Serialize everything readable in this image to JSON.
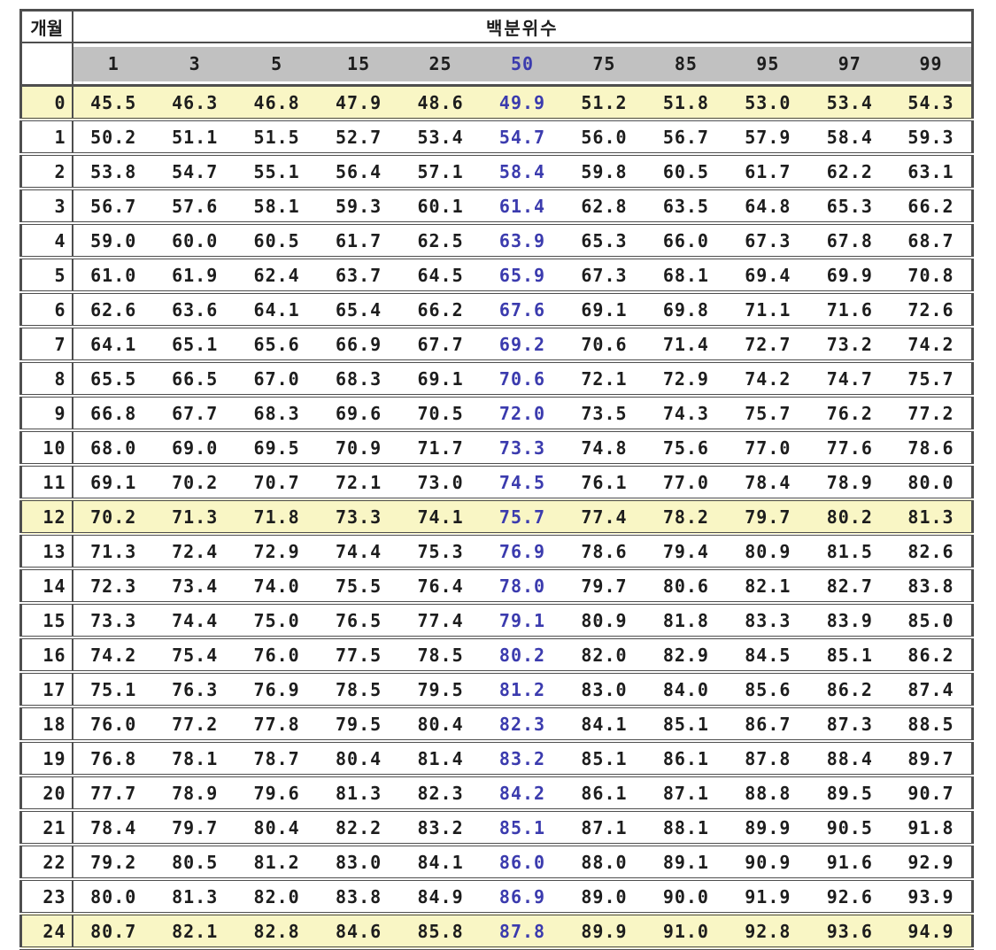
{
  "table": {
    "corner_header": "개월",
    "group_header": "백분위수",
    "percentile_headers": [
      "1",
      "3",
      "5",
      "15",
      "25",
      "50",
      "75",
      "85",
      "95",
      "97",
      "99"
    ],
    "median_column_index": 5,
    "highlighted_months": [
      0,
      12,
      24
    ],
    "colors": {
      "header_band": "#c1c1c1",
      "highlight_row": "#f9f6c5",
      "median_text": "#3b3bae",
      "body_text": "#1d1d1d",
      "border": "#4e4e4e"
    },
    "rows": [
      {
        "month": "0",
        "values": [
          "45.5",
          "46.3",
          "46.8",
          "47.9",
          "48.6",
          "49.9",
          "51.2",
          "51.8",
          "53.0",
          "53.4",
          "54.3"
        ]
      },
      {
        "month": "1",
        "values": [
          "50.2",
          "51.1",
          "51.5",
          "52.7",
          "53.4",
          "54.7",
          "56.0",
          "56.7",
          "57.9",
          "58.4",
          "59.3"
        ]
      },
      {
        "month": "2",
        "values": [
          "53.8",
          "54.7",
          "55.1",
          "56.4",
          "57.1",
          "58.4",
          "59.8",
          "60.5",
          "61.7",
          "62.2",
          "63.1"
        ]
      },
      {
        "month": "3",
        "values": [
          "56.7",
          "57.6",
          "58.1",
          "59.3",
          "60.1",
          "61.4",
          "62.8",
          "63.5",
          "64.8",
          "65.3",
          "66.2"
        ]
      },
      {
        "month": "4",
        "values": [
          "59.0",
          "60.0",
          "60.5",
          "61.7",
          "62.5",
          "63.9",
          "65.3",
          "66.0",
          "67.3",
          "67.8",
          "68.7"
        ]
      },
      {
        "month": "5",
        "values": [
          "61.0",
          "61.9",
          "62.4",
          "63.7",
          "64.5",
          "65.9",
          "67.3",
          "68.1",
          "69.4",
          "69.9",
          "70.8"
        ]
      },
      {
        "month": "6",
        "values": [
          "62.6",
          "63.6",
          "64.1",
          "65.4",
          "66.2",
          "67.6",
          "69.1",
          "69.8",
          "71.1",
          "71.6",
          "72.6"
        ]
      },
      {
        "month": "7",
        "values": [
          "64.1",
          "65.1",
          "65.6",
          "66.9",
          "67.7",
          "69.2",
          "70.6",
          "71.4",
          "72.7",
          "73.2",
          "74.2"
        ]
      },
      {
        "month": "8",
        "values": [
          "65.5",
          "66.5",
          "67.0",
          "68.3",
          "69.1",
          "70.6",
          "72.1",
          "72.9",
          "74.2",
          "74.7",
          "75.7"
        ]
      },
      {
        "month": "9",
        "values": [
          "66.8",
          "67.7",
          "68.3",
          "69.6",
          "70.5",
          "72.0",
          "73.5",
          "74.3",
          "75.7",
          "76.2",
          "77.2"
        ]
      },
      {
        "month": "10",
        "values": [
          "68.0",
          "69.0",
          "69.5",
          "70.9",
          "71.7",
          "73.3",
          "74.8",
          "75.6",
          "77.0",
          "77.6",
          "78.6"
        ]
      },
      {
        "month": "11",
        "values": [
          "69.1",
          "70.2",
          "70.7",
          "72.1",
          "73.0",
          "74.5",
          "76.1",
          "77.0",
          "78.4",
          "78.9",
          "80.0"
        ]
      },
      {
        "month": "12",
        "values": [
          "70.2",
          "71.3",
          "71.8",
          "73.3",
          "74.1",
          "75.7",
          "77.4",
          "78.2",
          "79.7",
          "80.2",
          "81.3"
        ]
      },
      {
        "month": "13",
        "values": [
          "71.3",
          "72.4",
          "72.9",
          "74.4",
          "75.3",
          "76.9",
          "78.6",
          "79.4",
          "80.9",
          "81.5",
          "82.6"
        ]
      },
      {
        "month": "14",
        "values": [
          "72.3",
          "73.4",
          "74.0",
          "75.5",
          "76.4",
          "78.0",
          "79.7",
          "80.6",
          "82.1",
          "82.7",
          "83.8"
        ]
      },
      {
        "month": "15",
        "values": [
          "73.3",
          "74.4",
          "75.0",
          "76.5",
          "77.4",
          "79.1",
          "80.9",
          "81.8",
          "83.3",
          "83.9",
          "85.0"
        ]
      },
      {
        "month": "16",
        "values": [
          "74.2",
          "75.4",
          "76.0",
          "77.5",
          "78.5",
          "80.2",
          "82.0",
          "82.9",
          "84.5",
          "85.1",
          "86.2"
        ]
      },
      {
        "month": "17",
        "values": [
          "75.1",
          "76.3",
          "76.9",
          "78.5",
          "79.5",
          "81.2",
          "83.0",
          "84.0",
          "85.6",
          "86.2",
          "87.4"
        ]
      },
      {
        "month": "18",
        "values": [
          "76.0",
          "77.2",
          "77.8",
          "79.5",
          "80.4",
          "82.3",
          "84.1",
          "85.1",
          "86.7",
          "87.3",
          "88.5"
        ]
      },
      {
        "month": "19",
        "values": [
          "76.8",
          "78.1",
          "78.7",
          "80.4",
          "81.4",
          "83.2",
          "85.1",
          "86.1",
          "87.8",
          "88.4",
          "89.7"
        ]
      },
      {
        "month": "20",
        "values": [
          "77.7",
          "78.9",
          "79.6",
          "81.3",
          "82.3",
          "84.2",
          "86.1",
          "87.1",
          "88.8",
          "89.5",
          "90.7"
        ]
      },
      {
        "month": "21",
        "values": [
          "78.4",
          "79.7",
          "80.4",
          "82.2",
          "83.2",
          "85.1",
          "87.1",
          "88.1",
          "89.9",
          "90.5",
          "91.8"
        ]
      },
      {
        "month": "22",
        "values": [
          "79.2",
          "80.5",
          "81.2",
          "83.0",
          "84.1",
          "86.0",
          "88.0",
          "89.1",
          "90.9",
          "91.6",
          "92.9"
        ]
      },
      {
        "month": "23",
        "values": [
          "80.0",
          "81.3",
          "82.0",
          "83.8",
          "84.9",
          "86.9",
          "89.0",
          "90.0",
          "91.9",
          "92.6",
          "93.9"
        ]
      },
      {
        "month": "24",
        "values": [
          "80.7",
          "82.1",
          "82.8",
          "84.6",
          "85.8",
          "87.8",
          "89.9",
          "91.0",
          "92.8",
          "93.6",
          "94.9"
        ]
      }
    ]
  }
}
